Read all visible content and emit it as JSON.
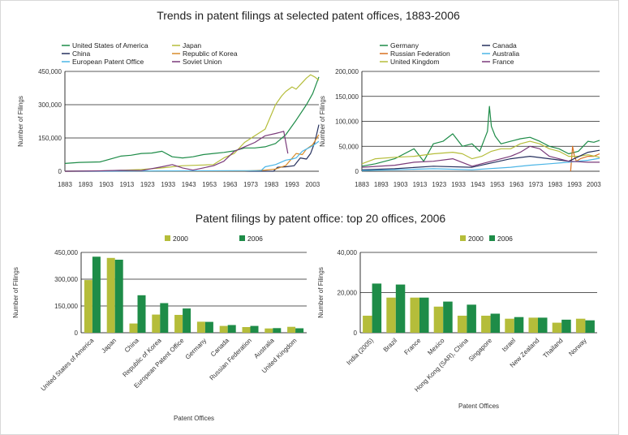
{
  "titles": {
    "trends": "Trends in patent filings at selected patent offices, 1883-2006",
    "top20": "Patent filings by patent office: top 20 offices, 2006"
  },
  "chart_data": [
    {
      "type": "line",
      "title": "Trends in patent filings at selected patent offices, 1883-2006",
      "xlabel": "",
      "ylabel": "Number of Filings",
      "xlim": [
        1883,
        2006
      ],
      "ylim": [
        0,
        450000
      ],
      "yticks": [
        0,
        150000,
        300000,
        450000
      ],
      "ytick_labels": [
        "0",
        "150,000",
        "300,000",
        "450,000"
      ],
      "xticks": [
        "1883",
        "1893",
        "1903",
        "1913",
        "1923",
        "1933",
        "1943",
        "1953",
        "1963",
        "1973",
        "1983",
        "1993",
        "2003"
      ],
      "grid": true,
      "legend_position": "top",
      "series": [
        {
          "name": "United States of America",
          "color": "#1e8c48",
          "x": [
            1883,
            1890,
            1900,
            1910,
            1915,
            1920,
            1925,
            1930,
            1935,
            1940,
            1945,
            1950,
            1955,
            1960,
            1965,
            1970,
            1975,
            1980,
            1985,
            1990,
            1995,
            2000,
            2003,
            2006
          ],
          "y": [
            35000,
            40000,
            42000,
            68000,
            72000,
            80000,
            82000,
            90000,
            65000,
            60000,
            65000,
            75000,
            80000,
            85000,
            92000,
            105000,
            105000,
            110000,
            125000,
            165000,
            230000,
            300000,
            350000,
            425000
          ]
        },
        {
          "name": "Japan",
          "color": "#b5bd3a",
          "x": [
            1883,
            1900,
            1910,
            1920,
            1930,
            1940,
            1950,
            1955,
            1960,
            1965,
            1970,
            1975,
            1980,
            1985,
            1988,
            1990,
            1993,
            1995,
            1998,
            2000,
            2002,
            2004,
            2006
          ],
          "y": [
            0,
            1000,
            4000,
            8000,
            15000,
            25000,
            28000,
            30000,
            60000,
            80000,
            130000,
            160000,
            190000,
            300000,
            340000,
            360000,
            380000,
            370000,
            400000,
            420000,
            435000,
            425000,
            410000
          ]
        },
        {
          "name": "China",
          "color": "#26315e",
          "x": [
            1883,
            1984,
            1986,
            1990,
            1994,
            1997,
            2000,
            2002,
            2004,
            2005,
            2006
          ],
          "y": [
            0,
            0,
            18000,
            20000,
            25000,
            60000,
            55000,
            80000,
            130000,
            170000,
            210000
          ]
        },
        {
          "name": "Republic of Korea",
          "color": "#d88c2a",
          "x": [
            1883,
            1970,
            1980,
            1985,
            1990,
            1995,
            1998,
            2000,
            2003,
            2006
          ],
          "y": [
            0,
            1000,
            5000,
            10000,
            26000,
            80000,
            75000,
            100000,
            120000,
            165000
          ]
        },
        {
          "name": "European Patent Office",
          "color": "#4bb5e6",
          "x": [
            1883,
            1978,
            1980,
            1985,
            1990,
            1993,
            1995,
            1998,
            2000,
            2003,
            2006
          ],
          "y": [
            0,
            3000,
            20000,
            30000,
            50000,
            55000,
            60000,
            90000,
            100000,
            115000,
            135000
          ]
        },
        {
          "name": "Soviet Union",
          "color": "#7a3a7a",
          "x": [
            1883,
            1900,
            1910,
            1920,
            1930,
            1935,
            1940,
            1945,
            1950,
            1955,
            1960,
            1965,
            1970,
            1975,
            1980,
            1985,
            1987,
            1989,
            1991
          ],
          "y": [
            0,
            2000,
            4000,
            3000,
            20000,
            30000,
            15000,
            5000,
            15000,
            25000,
            45000,
            90000,
            110000,
            130000,
            160000,
            170000,
            175000,
            180000,
            80000
          ]
        }
      ]
    },
    {
      "type": "line",
      "title": "",
      "xlabel": "",
      "ylabel": "Number of Filings",
      "xlim": [
        1883,
        2006
      ],
      "ylim": [
        0,
        200000
      ],
      "yticks": [
        0,
        50000,
        100000,
        150000,
        200000
      ],
      "ytick_labels": [
        "0",
        "50,000",
        "100,000",
        "150,000",
        "200,000"
      ],
      "xticks": [
        "1883",
        "1893",
        "1903",
        "1913",
        "1923",
        "1933",
        "1943",
        "1953",
        "1963",
        "1973",
        "1983",
        "1993",
        "2003"
      ],
      "grid": true,
      "legend_position": "top",
      "series": [
        {
          "name": "Germany",
          "color": "#1e8c48",
          "x": [
            1883,
            1890,
            1900,
            1910,
            1915,
            1920,
            1925,
            1930,
            1935,
            1940,
            1944,
            1948,
            1949,
            1950,
            1952,
            1955,
            1960,
            1965,
            1970,
            1975,
            1980,
            1985,
            1990,
            1995,
            2000,
            2003,
            2006
          ],
          "y": [
            10000,
            15000,
            25000,
            45000,
            20000,
            55000,
            60000,
            75000,
            50000,
            55000,
            40000,
            80000,
            130000,
            90000,
            70000,
            55000,
            60000,
            65000,
            68000,
            60000,
            50000,
            45000,
            35000,
            40000,
            60000,
            58000,
            62000
          ]
        },
        {
          "name": "Russian Federation",
          "color": "#d87020",
          "x": [
            1991,
            1992,
            1993,
            1994,
            1996,
            2000,
            2003,
            2006
          ],
          "y": [
            0,
            50000,
            30000,
            20000,
            25000,
            30000,
            30000,
            35000
          ]
        },
        {
          "name": "United Kingdom",
          "color": "#b5bd3a",
          "x": [
            1883,
            1890,
            1900,
            1910,
            1920,
            1930,
            1935,
            1940,
            1945,
            1950,
            1955,
            1960,
            1965,
            1970,
            1975,
            1980,
            1985,
            1990,
            1995,
            2000,
            2006
          ],
          "y": [
            15000,
            25000,
            28000,
            30000,
            35000,
            38000,
            35000,
            25000,
            30000,
            40000,
            45000,
            45000,
            55000,
            60000,
            55000,
            45000,
            40000,
            30000,
            30000,
            33000,
            28000
          ]
        },
        {
          "name": "Canada",
          "color": "#26315e",
          "x": [
            1883,
            1900,
            1920,
            1940,
            1960,
            1970,
            1980,
            1990,
            2000,
            2006
          ],
          "y": [
            3000,
            5000,
            10000,
            8000,
            25000,
            30000,
            25000,
            20000,
            38000,
            42000
          ]
        },
        {
          "name": "Australia",
          "color": "#4bb5e6",
          "x": [
            1883,
            1900,
            1920,
            1940,
            1960,
            1970,
            1980,
            1990,
            2000,
            2006
          ],
          "y": [
            1500,
            3000,
            5000,
            3000,
            8000,
            12000,
            15000,
            18000,
            22000,
            26000
          ]
        },
        {
          "name": "France",
          "color": "#7a3a7a",
          "x": [
            1883,
            1900,
            1910,
            1920,
            1930,
            1940,
            1950,
            1960,
            1965,
            1970,
            1975,
            1980,
            1990,
            2000,
            2006
          ],
          "y": [
            8000,
            12000,
            18000,
            20000,
            25000,
            10000,
            20000,
            30000,
            38000,
            50000,
            45000,
            30000,
            20000,
            18000,
            18000
          ]
        }
      ]
    },
    {
      "type": "bar",
      "title": "Patent filings by patent office: top 20 offices, 2006",
      "xlabel": "Patent Offices",
      "ylabel": "Number of Filings",
      "ylim": [
        0,
        450000
      ],
      "yticks": [
        0,
        150000,
        300000,
        450000
      ],
      "ytick_labels": [
        "0",
        "150,000",
        "300,000",
        "450,000"
      ],
      "grid": true,
      "legend_position": "top",
      "categories": [
        "United States of America",
        "Japan",
        "China",
        "Republic of Korea",
        "European Patent Office",
        "Germany",
        "Canada",
        "Russian Federation",
        "Australia",
        "United Kingdom"
      ],
      "series": [
        {
          "name": "2000",
          "color": "#b5bd3a",
          "values": [
            295000,
            419000,
            52000,
            102000,
            100000,
            62000,
            38000,
            32000,
            24000,
            33000
          ]
        },
        {
          "name": "2006",
          "color": "#1e8c48",
          "values": [
            426000,
            409000,
            210000,
            166000,
            136000,
            61000,
            43000,
            38000,
            26000,
            25000
          ]
        }
      ]
    },
    {
      "type": "bar",
      "title": "",
      "xlabel": "Patent Offices",
      "ylabel": "Number of Filings",
      "ylim": [
        0,
        40000
      ],
      "yticks": [
        0,
        20000,
        40000
      ],
      "ytick_labels": [
        "0",
        "20,000",
        "40,000"
      ],
      "grid": true,
      "legend_position": "top",
      "categories": [
        "India (2005)",
        "Brazil",
        "France",
        "Mexico",
        "Hong Kong (SAR), China",
        "Singapore",
        "Israel",
        "New Zealand",
        "Thailand",
        "Norway"
      ],
      "series": [
        {
          "name": "2000",
          "color": "#b5bd3a",
          "values": [
            8500,
            17500,
            17500,
            13000,
            8500,
            8500,
            7000,
            7500,
            5000,
            7000
          ]
        },
        {
          "name": "2006",
          "color": "#1e8c48",
          "values": [
            24500,
            24000,
            17500,
            15500,
            14000,
            9500,
            7800,
            7500,
            6500,
            6200
          ]
        }
      ]
    }
  ]
}
